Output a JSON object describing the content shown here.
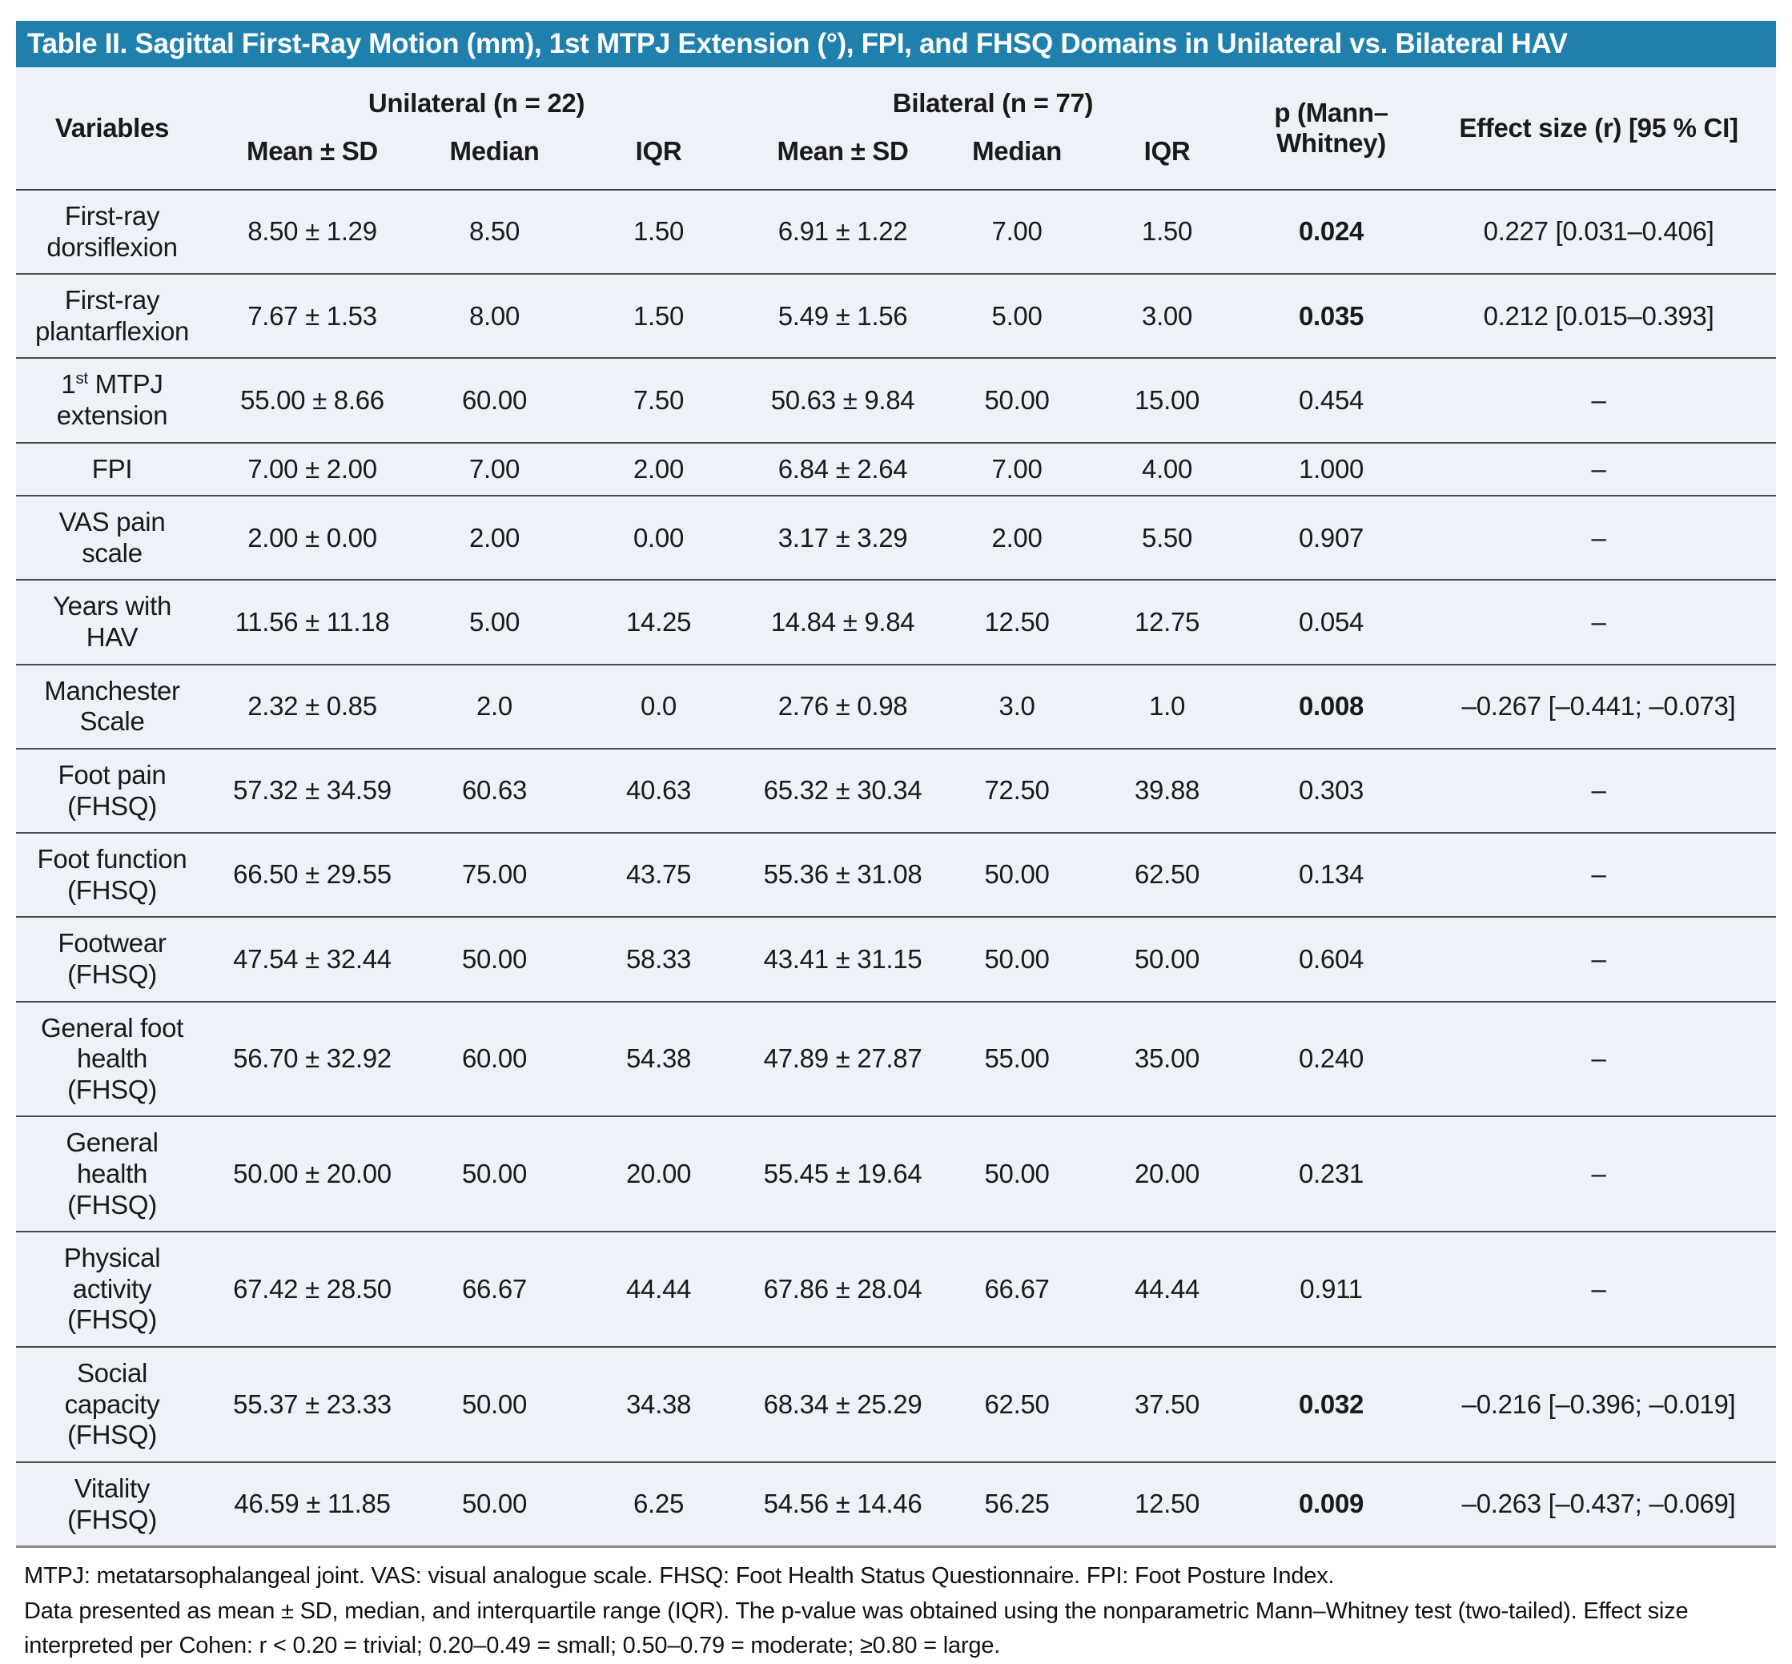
{
  "title": "Table II. Sagittal First-Ray Motion (mm), 1st MTPJ Extension (°), FPI, and FHSQ Domains in Unilateral vs. Bilateral HAV",
  "header": {
    "variables": "Variables",
    "group_unilateral": "Unilateral (n = 22)",
    "group_bilateral": "Bilateral (n = 77)",
    "sub_mean": "Mean ± SD",
    "sub_median": "Median",
    "sub_iqr": "IQR",
    "p_label": "p (Mann–Whitney)",
    "effect_label": "Effect size (r) [95 % CI]"
  },
  "rows": [
    {
      "variable": "First-ray dorsiflexion",
      "uni_mean_sd": "8.50 ± 1.29",
      "uni_median": "8.50",
      "uni_iqr": "1.50",
      "bi_mean_sd": "6.91 ± 1.22",
      "bi_median": "7.00",
      "bi_iqr": "1.50",
      "p": "0.024",
      "p_bold": true,
      "effect": "0.227 [0.031–0.406]"
    },
    {
      "variable": "First-ray plantarflexion",
      "uni_mean_sd": "7.67 ± 1.53",
      "uni_median": "8.00",
      "uni_iqr": "1.50",
      "bi_mean_sd": "5.49 ± 1.56",
      "bi_median": "5.00",
      "bi_iqr": "3.00",
      "p": "0.035",
      "p_bold": true,
      "effect": "0.212 [0.015–0.393]"
    },
    {
      "variable": "1^st^ MTPJ extension",
      "uni_mean_sd": "55.00 ± 8.66",
      "uni_median": "60.00",
      "uni_iqr": "7.50",
      "bi_mean_sd": "50.63 ± 9.84",
      "bi_median": "50.00",
      "bi_iqr": "15.00",
      "p": "0.454",
      "p_bold": false,
      "effect": "–"
    },
    {
      "variable": "FPI",
      "uni_mean_sd": "7.00 ± 2.00",
      "uni_median": "7.00",
      "uni_iqr": "2.00",
      "bi_mean_sd": "6.84 ± 2.64",
      "bi_median": "7.00",
      "bi_iqr": "4.00",
      "p": "1.000",
      "p_bold": false,
      "effect": "–"
    },
    {
      "variable": "VAS pain scale",
      "uni_mean_sd": "2.00 ± 0.00",
      "uni_median": "2.00",
      "uni_iqr": "0.00",
      "bi_mean_sd": "3.17 ± 3.29",
      "bi_median": "2.00",
      "bi_iqr": "5.50",
      "p": "0.907",
      "p_bold": false,
      "effect": "–"
    },
    {
      "variable": "Years with HAV",
      "uni_mean_sd": "11.56 ± 11.18",
      "uni_median": "5.00",
      "uni_iqr": "14.25",
      "bi_mean_sd": "14.84 ± 9.84",
      "bi_median": "12.50",
      "bi_iqr": "12.75",
      "p": "0.054",
      "p_bold": false,
      "effect": "–"
    },
    {
      "variable": "Manchester Scale",
      "uni_mean_sd": "2.32 ± 0.85",
      "uni_median": "2.0",
      "uni_iqr": "0.0",
      "bi_mean_sd": "2.76 ± 0.98",
      "bi_median": "3.0",
      "bi_iqr": "1.0",
      "p": "0.008",
      "p_bold": true,
      "effect": "–0.267 [–0.441; –0.073]"
    },
    {
      "variable": "Foot pain (FHSQ)",
      "uni_mean_sd": "57.32 ± 34.59",
      "uni_median": "60.63",
      "uni_iqr": "40.63",
      "bi_mean_sd": "65.32 ± 30.34",
      "bi_median": "72.50",
      "bi_iqr": "39.88",
      "p": "0.303",
      "p_bold": false,
      "effect": "–"
    },
    {
      "variable": "Foot function (FHSQ)",
      "uni_mean_sd": "66.50 ± 29.55",
      "uni_median": "75.00",
      "uni_iqr": "43.75",
      "bi_mean_sd": "55.36 ± 31.08",
      "bi_median": "50.00",
      "bi_iqr": "62.50",
      "p": "0.134",
      "p_bold": false,
      "effect": "–"
    },
    {
      "variable": "Footwear (FHSQ)",
      "uni_mean_sd": "47.54 ± 32.44",
      "uni_median": "50.00",
      "uni_iqr": "58.33",
      "bi_mean_sd": "43.41 ± 31.15",
      "bi_median": "50.00",
      "bi_iqr": "50.00",
      "p": "0.604",
      "p_bold": false,
      "effect": "–"
    },
    {
      "variable": "General foot health (FHSQ)",
      "uni_mean_sd": "56.70 ± 32.92",
      "uni_median": "60.00",
      "uni_iqr": "54.38",
      "bi_mean_sd": "47.89 ± 27.87",
      "bi_median": "55.00",
      "bi_iqr": "35.00",
      "p": "0.240",
      "p_bold": false,
      "effect": "–"
    },
    {
      "variable": "General health (FHSQ)",
      "uni_mean_sd": "50.00 ± 20.00",
      "uni_median": "50.00",
      "uni_iqr": "20.00",
      "bi_mean_sd": "55.45 ± 19.64",
      "bi_median": "50.00",
      "bi_iqr": "20.00",
      "p": "0.231",
      "p_bold": false,
      "effect": "–"
    },
    {
      "variable": "Physical activity (FHSQ)",
      "uni_mean_sd": "67.42 ± 28.50",
      "uni_median": "66.67",
      "uni_iqr": "44.44",
      "bi_mean_sd": "67.86 ± 28.04",
      "bi_median": "66.67",
      "bi_iqr": "44.44",
      "p": "0.911",
      "p_bold": false,
      "effect": "–"
    },
    {
      "variable": "Social capacity (FHSQ)",
      "uni_mean_sd": "55.37 ± 23.33",
      "uni_median": "50.00",
      "uni_iqr": "34.38",
      "bi_mean_sd": "68.34 ± 25.29",
      "bi_median": "62.50",
      "bi_iqr": "37.50",
      "p": "0.032",
      "p_bold": true,
      "effect": "–0.216 [–0.396; –0.019]"
    },
    {
      "variable": "Vitality (FHSQ)",
      "uni_mean_sd": "46.59 ± 11.85",
      "uni_median": "50.00",
      "uni_iqr": "6.25",
      "bi_mean_sd": "54.56 ± 14.46",
      "bi_median": "56.25",
      "bi_iqr": "12.50",
      "p": "0.009",
      "p_bold": true,
      "effect": "–0.263 [–0.437; –0.069]"
    }
  ],
  "footnotes": {
    "0": "MTPJ: metatarsophalangeal joint. VAS: visual analogue scale. FHSQ: Foot Health Status Questionnaire. FPI: Foot Posture Index.",
    "1": "Data presented as mean ± SD, median, and interquartile range (IQR). The p-value was obtained using the nonparametric Mann–Whitney test (two-tailed). Effect size interpreted per Cohen: r < 0.20 = trivial; 0.20–0.49 = small; 0.50–0.79 = moderate; ≥0.80 = large."
  },
  "colors": {
    "title_bar": "#1f80ad",
    "title_text": "#ffffff",
    "table_background": "#edf1f8",
    "row_separator": "#4a4a4a"
  }
}
